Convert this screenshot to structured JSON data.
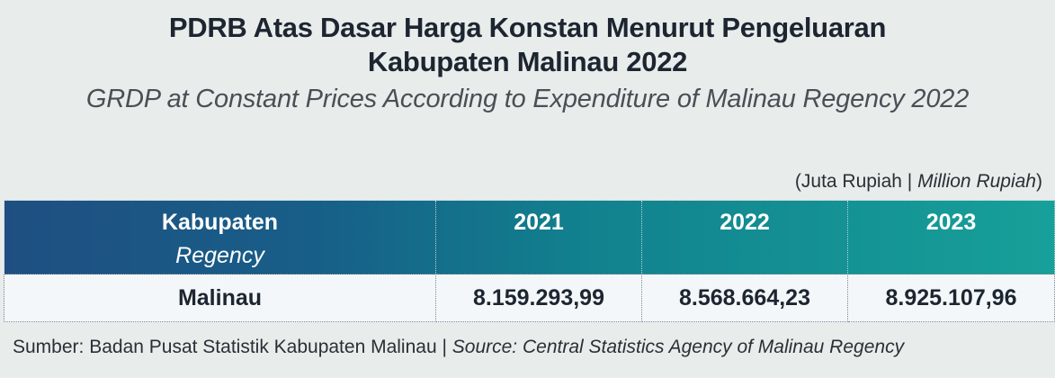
{
  "title": {
    "line1": "PDRB Atas Dasar Harga Konstan Menurut Pengeluaran",
    "line2": "Kabupaten Malinau 2022",
    "english": "GRDP at Constant Prices According to Expenditure of Malinau Regency 2022"
  },
  "unit": {
    "id": "(Juta Rupiah |",
    "en": "Million Rupiah",
    "close": ")"
  },
  "table": {
    "header": {
      "col1_id": "Kabupaten",
      "col1_en": "Regency",
      "years": [
        "2021",
        "2022",
        "2023"
      ]
    },
    "rows": [
      {
        "regency": "Malinau",
        "values": [
          "8.159.293,99",
          "8.568.664,23",
          "8.925.107,96"
        ]
      }
    ]
  },
  "source": {
    "id": "Sumber: Badan Pusat Statistik Kabupaten Malinau |",
    "en": "Source: Central Statistics Agency of Malinau Regency"
  },
  "colors": {
    "header_gradient_start": "#1f4f82",
    "header_gradient_end": "#17a09a",
    "row_background": "#f4f7fa",
    "page_background": "#e8eceb"
  }
}
